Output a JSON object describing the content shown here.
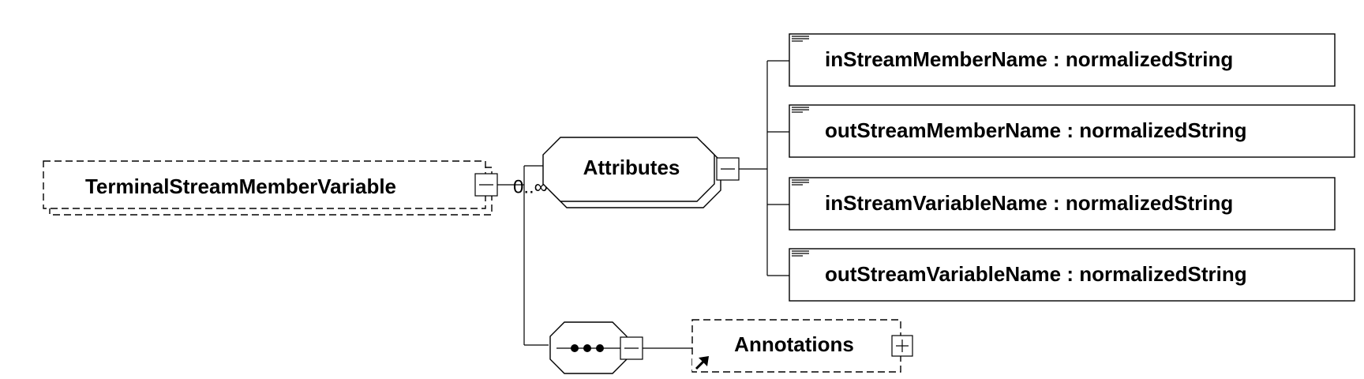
{
  "root": {
    "name": "TerminalStreamMemberVariable",
    "toggle": "collapse"
  },
  "sequence": {
    "cardinality": "0..∞",
    "toggle": "collapse"
  },
  "attribute_group": {
    "label": "Attributes",
    "toggle": "collapse",
    "items": [
      {
        "label": "inStreamMemberName : normalizedString"
      },
      {
        "label": "outStreamMemberName : normalizedString"
      },
      {
        "label": "inStreamVariableName : normalizedString"
      },
      {
        "label": "outStreamVariableName : normalizedString"
      }
    ]
  },
  "annotations": {
    "label": "Annotations",
    "toggle": "expand",
    "reference_icon": "arrow-link-icon"
  },
  "colors": {
    "line": "#000000",
    "background": "#ffffff"
  }
}
